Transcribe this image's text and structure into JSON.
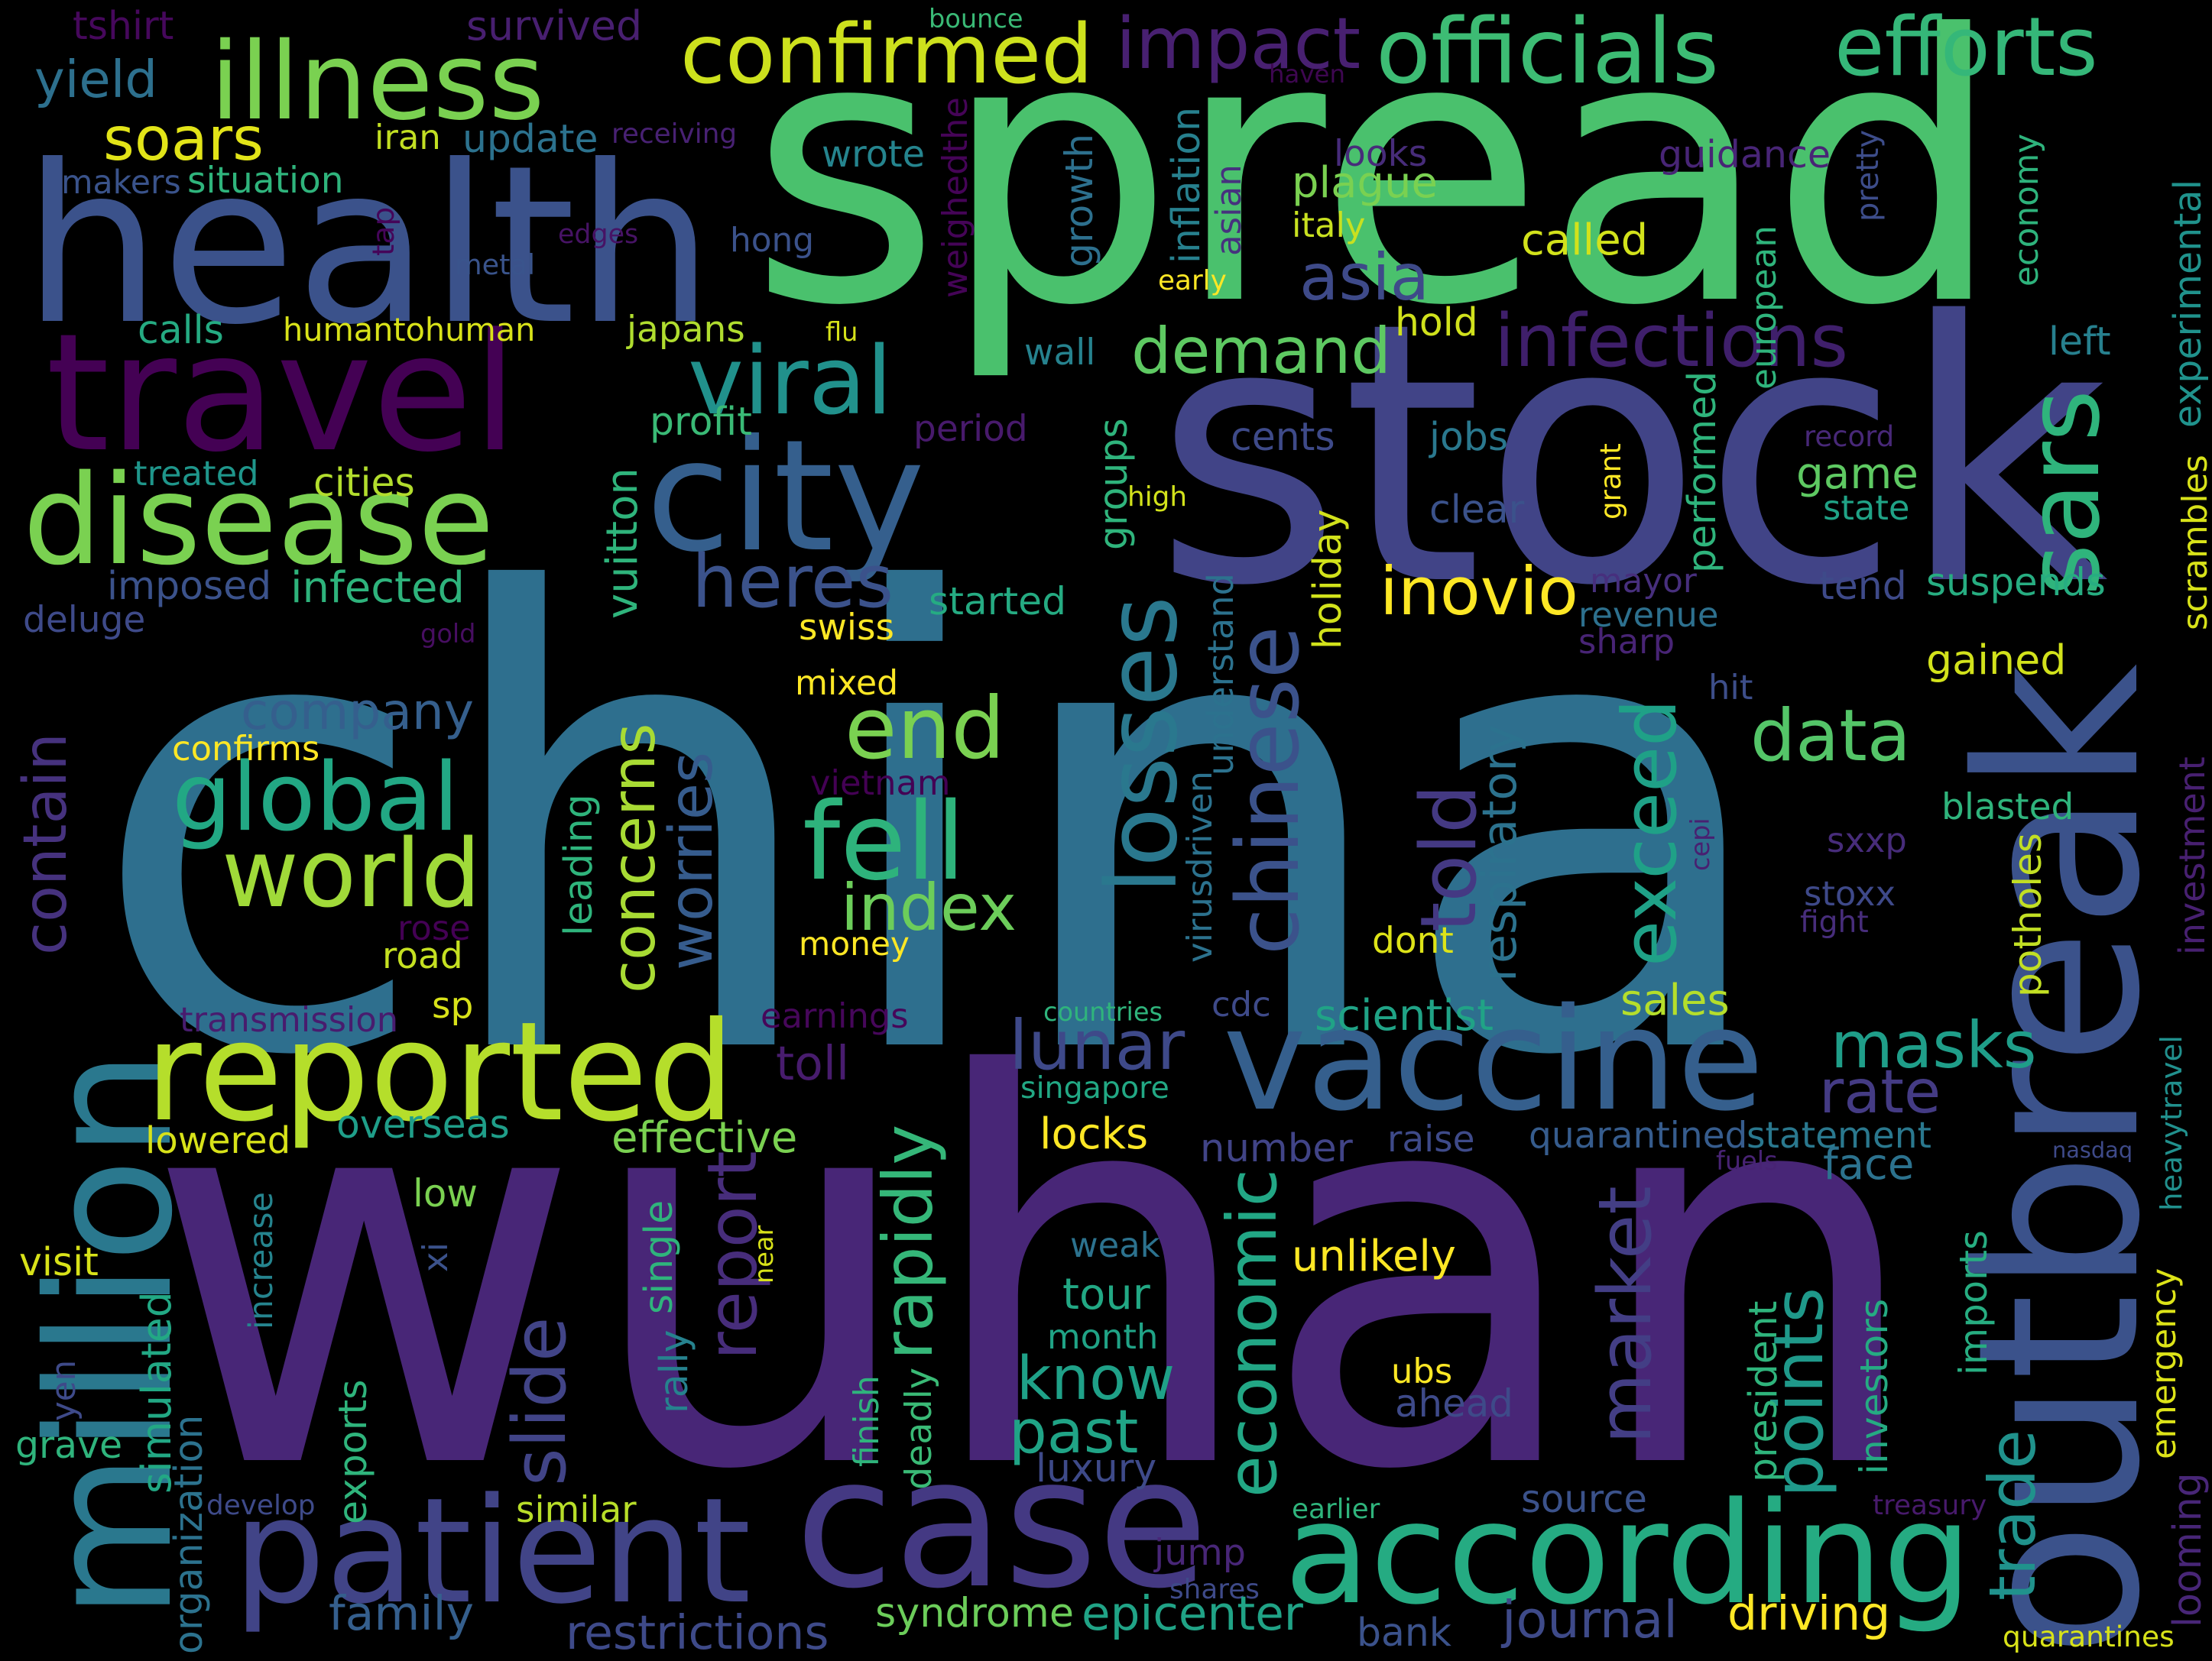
{
  "words": [
    {
      "t": "china",
      "c": "#2e6f8e"
    },
    {
      "t": "wuhan",
      "c": "#482677"
    },
    {
      "t": "spread",
      "c": "#4ac16d"
    },
    {
      "t": "stock",
      "c": "#414487"
    },
    {
      "t": "health",
      "c": "#3b528b"
    },
    {
      "t": "outbreak",
      "c": "#3b528b"
    },
    {
      "t": "travel",
      "c": "#440154"
    },
    {
      "t": "city",
      "c": "#355f8d"
    },
    {
      "t": "case",
      "c": "#443983"
    },
    {
      "t": "patient",
      "c": "#414487"
    },
    {
      "t": "according",
      "c": "#25ab82"
    },
    {
      "t": "million",
      "c": "#2a788e"
    },
    {
      "t": "vaccine",
      "c": "#355f8d"
    },
    {
      "t": "reported",
      "c": "#b5de2b"
    },
    {
      "t": "disease",
      "c": "#7ad151"
    },
    {
      "t": "illness",
      "c": "#7ad151"
    },
    {
      "t": "sars",
      "c": "#2fb47c"
    },
    {
      "t": "officials",
      "c": "#3dbc74"
    },
    {
      "t": "efforts",
      "c": "#35b779"
    },
    {
      "t": "confirmed",
      "c": "#cde11d"
    },
    {
      "t": "impact",
      "c": "#482071"
    },
    {
      "t": "infections",
      "c": "#3f1f6b"
    },
    {
      "t": "viral",
      "c": "#21918c"
    },
    {
      "t": "demand",
      "c": "#5ec962"
    },
    {
      "t": "asia",
      "c": "#3e4a89"
    },
    {
      "t": "global",
      "c": "#22a884"
    },
    {
      "t": "world",
      "c": "#a0da39"
    },
    {
      "t": "end",
      "c": "#7ad151"
    },
    {
      "t": "fell",
      "c": "#2eb37c"
    },
    {
      "t": "losses",
      "c": "#2a788e"
    },
    {
      "t": "chinese",
      "c": "#3b528b"
    },
    {
      "t": "index",
      "c": "#6ccd5a"
    },
    {
      "t": "heres",
      "c": "#3b528b"
    },
    {
      "t": "inovio",
      "c": "#fde725"
    },
    {
      "t": "data",
      "c": "#54c568"
    },
    {
      "t": "exceed",
      "c": "#1fa187"
    },
    {
      "t": "told",
      "c": "#443983"
    },
    {
      "t": "company",
      "c": "#355f8d"
    },
    {
      "t": "contain",
      "c": "#46327e"
    },
    {
      "t": "concerns",
      "c": "#a8db34"
    },
    {
      "t": "worries",
      "c": "#365c8d"
    },
    {
      "t": "rapidly",
      "c": "#35b779"
    },
    {
      "t": "report",
      "c": "#472d7b"
    },
    {
      "t": "lunar",
      "c": "#3e4989"
    },
    {
      "t": "market",
      "c": "#433e85"
    },
    {
      "t": "economic",
      "c": "#22a785"
    },
    {
      "t": "points",
      "c": "#1f998a"
    },
    {
      "t": "masks",
      "c": "#1f9e89"
    },
    {
      "t": "rate",
      "c": "#443b84"
    },
    {
      "t": "trade",
      "c": "#20928c"
    },
    {
      "t": "slide",
      "c": "#414487"
    },
    {
      "t": "know",
      "c": "#1fa188"
    },
    {
      "t": "past",
      "c": "#20a486"
    },
    {
      "t": "soars",
      "c": "#e2e418"
    },
    {
      "t": "yield",
      "c": "#2d708e"
    },
    {
      "t": "tshirt",
      "c": "#46085c"
    },
    {
      "t": "survived",
      "c": "#481f70"
    },
    {
      "t": "bounce",
      "c": "#3aba76"
    },
    {
      "t": "haven",
      "c": "#3e0751"
    },
    {
      "t": "update",
      "c": "#2c728e"
    },
    {
      "t": "iran",
      "c": "#c2df23"
    },
    {
      "t": "receiving",
      "c": "#482173"
    },
    {
      "t": "wrote",
      "c": "#25848e"
    },
    {
      "t": "makers",
      "c": "#3a538b"
    },
    {
      "t": "situation",
      "c": "#2fb47c"
    },
    {
      "t": "plague",
      "c": "#7ad151"
    },
    {
      "t": "looks",
      "c": "#472c7a"
    },
    {
      "t": "guidance",
      "c": "#482576"
    },
    {
      "t": "pretty",
      "c": "#3d4d8a"
    },
    {
      "t": "italy",
      "c": "#c8e020"
    },
    {
      "t": "hong",
      "c": "#3b528b"
    },
    {
      "t": "called",
      "c": "#d2e21b"
    },
    {
      "t": "edges",
      "c": "#471365"
    },
    {
      "t": "metal",
      "c": "#3a548c"
    },
    {
      "t": "tap",
      "c": "#450559"
    },
    {
      "t": "early",
      "c": "#fde725"
    },
    {
      "t": "growth",
      "c": "#2d708e"
    },
    {
      "t": "weighedthe",
      "c": "#450457"
    },
    {
      "t": "inflation",
      "c": "#27808e"
    },
    {
      "t": "asian",
      "c": "#46327e"
    },
    {
      "t": "economy",
      "c": "#2eb37c"
    },
    {
      "t": "european",
      "c": "#2fb47c"
    },
    {
      "t": "experimental",
      "c": "#20928c"
    },
    {
      "t": "calls",
      "c": "#25ab82"
    },
    {
      "t": "humantohuman",
      "c": "#d8e219"
    },
    {
      "t": "japans",
      "c": "#b0dd2f"
    },
    {
      "t": "flu",
      "c": "#d5e21a"
    },
    {
      "t": "wall",
      "c": "#26828e"
    },
    {
      "t": "hold",
      "c": "#d0e11c"
    },
    {
      "t": "left",
      "c": "#27808e"
    },
    {
      "t": "profit",
      "c": "#3aba76"
    },
    {
      "t": "period",
      "c": "#481a6c"
    },
    {
      "t": "record",
      "c": "#482878"
    },
    {
      "t": "treated",
      "c": "#1f968b"
    },
    {
      "t": "cities",
      "c": "#b2dd2d"
    },
    {
      "t": "cents",
      "c": "#3e4a89"
    },
    {
      "t": "jobs",
      "c": "#2a788e"
    },
    {
      "t": "game",
      "c": "#5ec962"
    },
    {
      "t": "state",
      "c": "#20a386"
    },
    {
      "t": "clear",
      "c": "#3b528b"
    },
    {
      "t": "high",
      "c": "#d2e21b"
    },
    {
      "t": "grant",
      "c": "#fde725"
    },
    {
      "t": "scrambles",
      "c": "#d8e219"
    },
    {
      "t": "imposed",
      "c": "#3b528b"
    },
    {
      "t": "infected",
      "c": "#2eb37c"
    },
    {
      "t": "deluge",
      "c": "#3e4a89"
    },
    {
      "t": "gold",
      "c": "#470e61"
    },
    {
      "t": "swiss",
      "c": "#fde725"
    },
    {
      "t": "started",
      "c": "#25ab82"
    },
    {
      "t": "mayor",
      "c": "#472f7d"
    },
    {
      "t": "revenue",
      "c": "#2d708e"
    },
    {
      "t": "sharp",
      "c": "#482475"
    },
    {
      "t": "tend",
      "c": "#3e4a89"
    },
    {
      "t": "suspends",
      "c": "#27ad81"
    },
    {
      "t": "gained",
      "c": "#d2e21b"
    },
    {
      "t": "hit",
      "c": "#3d4e8a"
    },
    {
      "t": "confirms",
      "c": "#fde725"
    },
    {
      "t": "mixed",
      "c": "#fde725"
    },
    {
      "t": "vietnam",
      "c": "#440154"
    },
    {
      "t": "blasted",
      "c": "#2fb47c"
    },
    {
      "t": "sxxp",
      "c": "#472c7a"
    },
    {
      "t": "stoxx",
      "c": "#3e4989"
    },
    {
      "t": "fight",
      "c": "#472d7b"
    },
    {
      "t": "investment",
      "c": "#482071"
    },
    {
      "t": "potholes",
      "c": "#c2df23"
    },
    {
      "t": "rose",
      "c": "#440154"
    },
    {
      "t": "road",
      "c": "#c5e021"
    },
    {
      "t": "money",
      "c": "#fde725"
    },
    {
      "t": "dont",
      "c": "#dde318"
    },
    {
      "t": "cepi",
      "c": "#482071"
    },
    {
      "t": "transmission",
      "c": "#481c6e"
    },
    {
      "t": "sp",
      "c": "#d8e219"
    },
    {
      "t": "earnings",
      "c": "#46075a"
    },
    {
      "t": "countries",
      "c": "#2fb47c"
    },
    {
      "t": "cdc",
      "c": "#3e4a89"
    },
    {
      "t": "scientist",
      "c": "#20a386"
    },
    {
      "t": "sales",
      "c": "#b5de2b"
    },
    {
      "t": "toll",
      "c": "#481c6e"
    },
    {
      "t": "singapore",
      "c": "#22a884"
    },
    {
      "t": "overseas",
      "c": "#1f9e89"
    },
    {
      "t": "effective",
      "c": "#7ad151"
    },
    {
      "t": "locks",
      "c": "#fde725"
    },
    {
      "t": "lowered",
      "c": "#d8e219"
    },
    {
      "t": "number",
      "c": "#414487"
    },
    {
      "t": "raise",
      "c": "#3e4a89"
    },
    {
      "t": "quarantined",
      "c": "#365c8d"
    },
    {
      "t": "statement",
      "c": "#2a788e"
    },
    {
      "t": "face",
      "c": "#2c728e"
    },
    {
      "t": "nasdaq",
      "c": "#3e4a89"
    },
    {
      "t": "fuels",
      "c": "#482374"
    },
    {
      "t": "heavytravel",
      "c": "#21908d"
    },
    {
      "t": "low",
      "c": "#7ad151"
    },
    {
      "t": "visit",
      "c": "#d8e219"
    },
    {
      "t": "increase",
      "c": "#25848e"
    },
    {
      "t": "single",
      "c": "#2fb47c"
    },
    {
      "t": "xi",
      "c": "#3b528b"
    },
    {
      "t": "near",
      "c": "#d8e219"
    },
    {
      "t": "unlikely",
      "c": "#fde725"
    },
    {
      "t": "weak",
      "c": "#2c728e"
    },
    {
      "t": "tour",
      "c": "#22a884"
    },
    {
      "t": "month",
      "c": "#20a386"
    },
    {
      "t": "emergency",
      "c": "#dde318"
    },
    {
      "t": "imports",
      "c": "#27ad81"
    },
    {
      "t": "investors",
      "c": "#25ab82"
    },
    {
      "t": "president",
      "c": "#2fb47c"
    },
    {
      "t": "ubs",
      "c": "#fde725"
    },
    {
      "t": "ahead",
      "c": "#3e4a89"
    },
    {
      "t": "simulated",
      "c": "#22a884"
    },
    {
      "t": "organization",
      "c": "#2c728e"
    },
    {
      "t": "rally",
      "c": "#26828e"
    },
    {
      "t": "deadly",
      "c": "#3aba76"
    },
    {
      "t": "finish",
      "c": "#2fb47c"
    },
    {
      "t": "exports",
      "c": "#2fb47c"
    },
    {
      "t": "yen",
      "c": "#3e4a89"
    },
    {
      "t": "grave",
      "c": "#2fb47c"
    },
    {
      "t": "develop",
      "c": "#3e4a89"
    },
    {
      "t": "similar",
      "c": "#b8de29"
    },
    {
      "t": "luxury",
      "c": "#3e4a89"
    },
    {
      "t": "earlier",
      "c": "#2fb47c"
    },
    {
      "t": "source",
      "c": "#3b528b"
    },
    {
      "t": "treasury",
      "c": "#481a6c"
    },
    {
      "t": "looming",
      "c": "#482677"
    },
    {
      "t": "jump",
      "c": "#482677"
    },
    {
      "t": "shares",
      "c": "#3e4a89"
    },
    {
      "t": "family",
      "c": "#355f8d"
    },
    {
      "t": "restrictions",
      "c": "#3e4a89"
    },
    {
      "t": "syndrome",
      "c": "#6ccd5a"
    },
    {
      "t": "epicenter",
      "c": "#20a386"
    },
    {
      "t": "bank",
      "c": "#3b528b"
    },
    {
      "t": "journal",
      "c": "#3e4a89"
    },
    {
      "t": "driving",
      "c": "#fde725"
    },
    {
      "t": "quarantines",
      "c": "#d8e219"
    },
    {
      "t": "respiratory",
      "c": "#2c728e"
    },
    {
      "t": "understand",
      "c": "#2c728e"
    },
    {
      "t": "virusdriven",
      "c": "#2c728e"
    },
    {
      "t": "holiday",
      "c": "#d2e21b"
    },
    {
      "t": "groups",
      "c": "#2fb47c"
    },
    {
      "t": "vuitton",
      "c": "#2fb47c"
    },
    {
      "t": "leading",
      "c": "#2fb47c"
    },
    {
      "t": "performed",
      "c": "#2fb47c"
    }
  ]
}
